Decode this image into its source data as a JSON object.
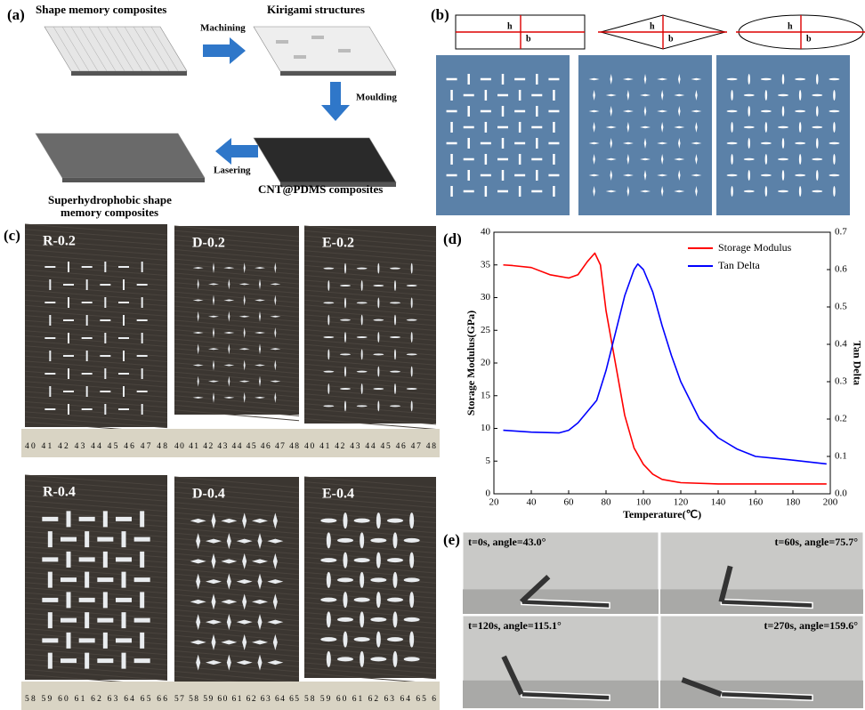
{
  "panel_a": {
    "label": "(a)",
    "texts": [
      "Shape memory composites",
      "Machining",
      "Kirigami structures",
      "Moulding",
      "Lasering",
      "CNT@PDMS composites",
      "Superhydrophobic shape",
      "memory composites"
    ]
  },
  "panel_b": {
    "label": "(b)",
    "dims": [
      "h",
      "b"
    ]
  },
  "panel_c": {
    "label": "(c)",
    "samples": [
      "R-0.2",
      "D-0.2",
      "E-0.2",
      "R-0.4",
      "D-0.4",
      "E-0.4"
    ],
    "rulers": [
      "40 41 42 43 44 45 46 47 48",
      "40 41 42 43 44 45 46 47 48",
      "40 41 42 43 44 45 46 47 48",
      "58 59 60 61 62 63 64 65 66",
      "57 58 59 60 61 62 63 64 65",
      "58 59 60 61 62 63 64 65 6"
    ]
  },
  "panel_d": {
    "label": "(d)"
  },
  "panel_e": {
    "label": "(e)",
    "captions": [
      "t=0s, angle=43.0°",
      "t=60s, angle=75.7°",
      "t=120s, angle=115.1°",
      "t=270s, angle=159.6°"
    ]
  },
  "chart_data": {
    "type": "line",
    "xlabel": "Temperature(℃)",
    "ylabel": "Storage Modulus(GPa)",
    "y2label": "Tan Delta",
    "xlim": [
      20,
      200
    ],
    "xticks": [
      20,
      40,
      60,
      80,
      100,
      120,
      140,
      160,
      180,
      200
    ],
    "ylim": [
      0,
      40
    ],
    "yticks": [
      0,
      5,
      10,
      15,
      20,
      25,
      30,
      35,
      40
    ],
    "y2lim": [
      0,
      0.7
    ],
    "y2ticks": [
      {
        "value": 0,
        "label": "0.0"
      },
      0.1,
      0.2,
      0.3,
      0.4,
      0.5,
      0.6,
      0.7
    ],
    "legend": "top-right",
    "series": [
      {
        "name": "Storage Modulus",
        "color": "#ff0000",
        "x": [
          25,
          30,
          40,
          50,
          60,
          65,
          70,
          74,
          77,
          80,
          85,
          90,
          95,
          100,
          105,
          110,
          120,
          140,
          160,
          180,
          198
        ],
        "values": [
          35,
          34.9,
          34.6,
          33.5,
          33,
          33.5,
          35.5,
          36.8,
          35,
          28,
          20,
          12,
          7,
          4.5,
          3,
          2.2,
          1.7,
          1.5,
          1.5,
          1.5,
          1.5
        ]
      },
      {
        "name": "Tan Delta",
        "color": "#0000ff",
        "axis": "y2",
        "x": [
          25,
          40,
          55,
          60,
          65,
          70,
          75,
          80,
          85,
          90,
          95,
          97,
          100,
          105,
          110,
          115,
          120,
          130,
          140,
          150,
          160,
          170,
          180,
          198
        ],
        "values": [
          0.17,
          0.165,
          0.163,
          0.17,
          0.19,
          0.22,
          0.25,
          0.33,
          0.43,
          0.53,
          0.6,
          0.615,
          0.6,
          0.54,
          0.45,
          0.37,
          0.3,
          0.2,
          0.15,
          0.12,
          0.1,
          0.095,
          0.09,
          0.08
        ]
      }
    ]
  }
}
